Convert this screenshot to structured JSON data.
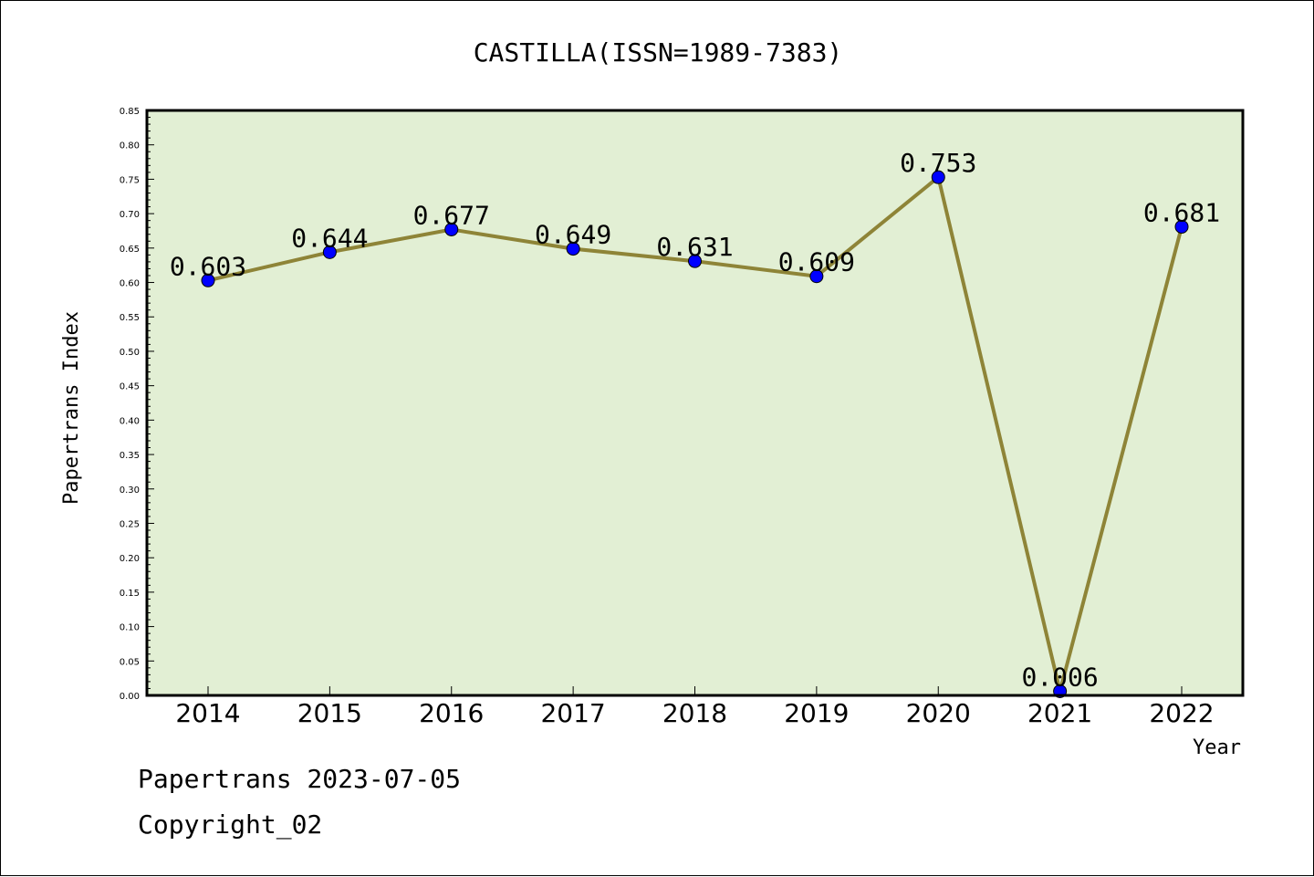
{
  "chart_data": {
    "type": "line",
    "title": "CASTILLA(ISSN=1989-7383)",
    "xlabel": "Year",
    "ylabel": "Papertrans Index",
    "categories": [
      "2014",
      "2015",
      "2016",
      "2017",
      "2018",
      "2019",
      "2020",
      "2021",
      "2022"
    ],
    "series": [
      {
        "values": [
          0.603,
          0.644,
          0.677,
          0.649,
          0.631,
          0.609,
          0.753,
          0.006,
          0.681
        ]
      }
    ],
    "data_labels": [
      "0.603",
      "0.644",
      "0.677",
      "0.649",
      "0.631",
      "0.609",
      "0.753",
      "0.006",
      "0.681"
    ],
    "ylim": [
      0,
      0.85
    ],
    "yticks": [
      "0.00",
      "0.05",
      "0.10",
      "0.15",
      "0.20",
      "0.25",
      "0.30",
      "0.35",
      "0.40",
      "0.45",
      "0.50",
      "0.55",
      "0.60",
      "0.65",
      "0.70",
      "0.75",
      "0.80",
      "0.85"
    ],
    "grid": false,
    "colors": {
      "plot_background": "#e2efd4",
      "line": "#8e8437",
      "marker": "#0000ff"
    }
  },
  "footer": {
    "line1": "Papertrans 2023-07-05",
    "line2": "Copyright_02"
  }
}
